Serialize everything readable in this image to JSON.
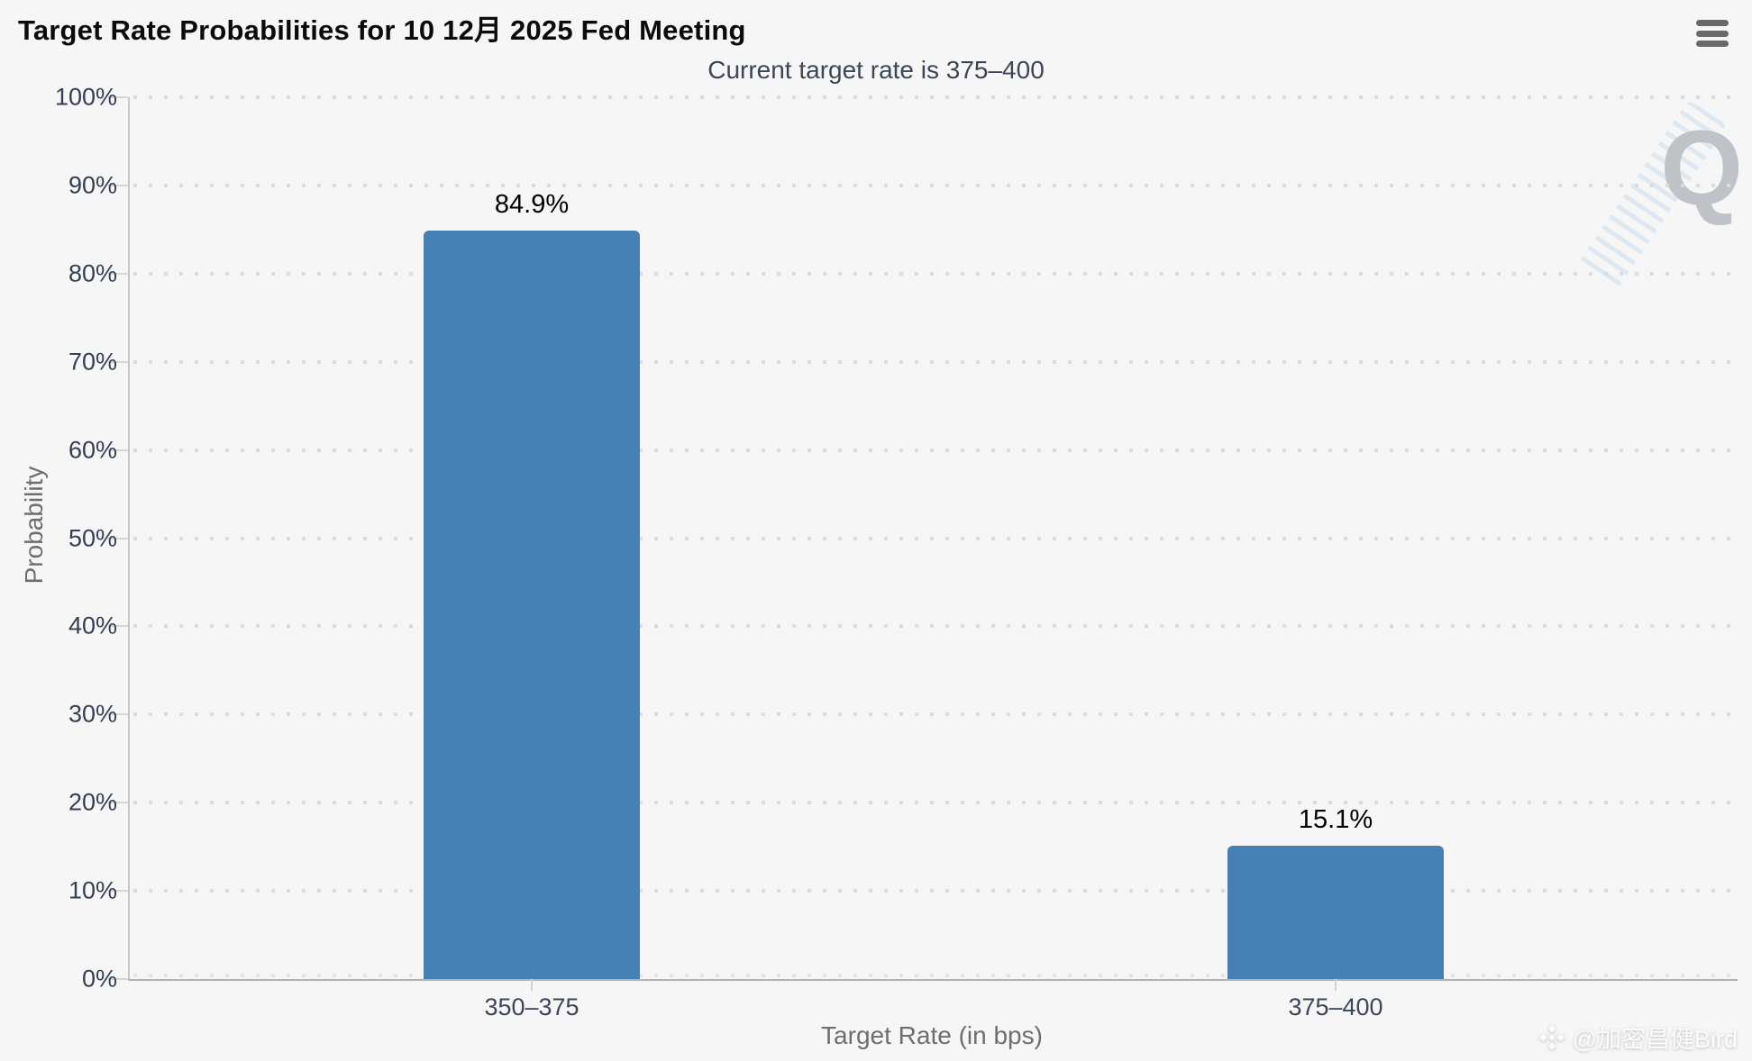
{
  "chart_data": {
    "type": "bar",
    "title": "Target Rate Probabilities for 10 12月 2025 Fed Meeting",
    "subtitle": "Current target rate is 375–400",
    "categories": [
      "350–375",
      "375–400"
    ],
    "values": [
      84.9,
      15.1
    ],
    "value_labels": [
      "84.9%",
      "15.1%"
    ],
    "xlabel": "Target Rate (in bps)",
    "ylabel": "Probability",
    "ylim": [
      0,
      100
    ],
    "ytick_labels": [
      "0%",
      "10%",
      "20%",
      "30%",
      "40%",
      "50%",
      "60%",
      "70%",
      "80%",
      "90%",
      "100%"
    ],
    "grid": "dotted-horizontal",
    "legend": "none",
    "bar_color": "#4680b4"
  },
  "menu": {
    "icon": "hamburger-icon"
  },
  "watermarks": {
    "logo_letter": "Q",
    "credit_icon": "binance-diamond-icon",
    "credit_text": "@加密昌健Bird"
  },
  "colors": {
    "background": "#f6f6f7",
    "bar": "#4680b4",
    "tick_label": "#353f52",
    "axis_title": "#6e6e6e",
    "grid_dot": "#dcdcde"
  }
}
